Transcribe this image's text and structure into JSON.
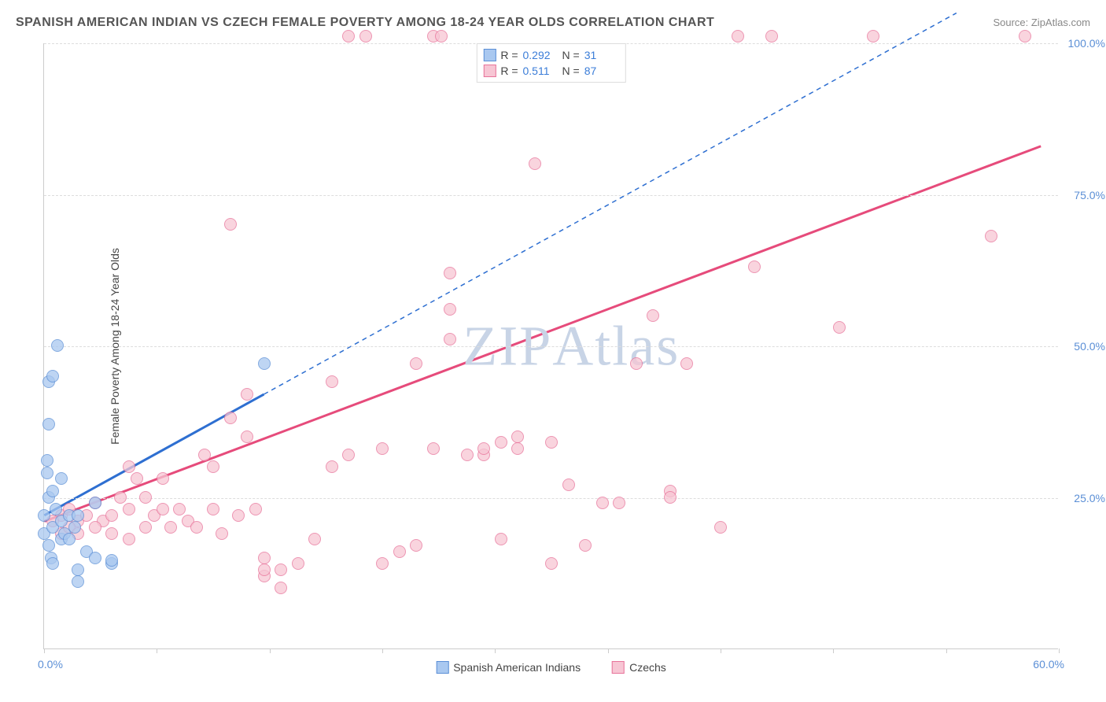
{
  "header": {
    "title": "SPANISH AMERICAN INDIAN VS CZECH FEMALE POVERTY AMONG 18-24 YEAR OLDS CORRELATION CHART",
    "source": "Source: ZipAtlas.com"
  },
  "watermark": "ZIPAtlas",
  "chart": {
    "type": "scatter",
    "y_axis_title": "Female Poverty Among 18-24 Year Olds",
    "xlim": [
      0,
      60
    ],
    "ylim": [
      0,
      100
    ],
    "x_origin_label": "0.0%",
    "x_max_label": "60.0%",
    "x_ticks": [
      0,
      6.67,
      13.33,
      20,
      26.67,
      33.33,
      40,
      46.67,
      53.33,
      60
    ],
    "y_gridlines": [
      {
        "y": 25,
        "label": "25.0%"
      },
      {
        "y": 50,
        "label": "50.0%"
      },
      {
        "y": 75,
        "label": "75.0%"
      },
      {
        "y": 100,
        "label": "100.0%"
      }
    ],
    "grid_color": "#dddddd",
    "axis_color": "#cccccc",
    "tick_label_color": "#5b8fd6",
    "marker_radius": 8,
    "marker_stroke_width": 1.5,
    "series": [
      {
        "name": "Spanish American Indians",
        "fill": "#a9c8f0",
        "stroke": "#5b8fd6",
        "R": "0.292",
        "N": "31",
        "trend": {
          "x1": 0,
          "y1": 22,
          "x2": 13,
          "y2": 42,
          "dash_x2": 54,
          "dash_y2": 105,
          "stroke": "#2e6fd1",
          "width": 3
        },
        "points": [
          [
            0,
            19
          ],
          [
            0,
            22
          ],
          [
            0.3,
            25
          ],
          [
            0.2,
            29
          ],
          [
            0.5,
            20
          ],
          [
            0.3,
            17
          ],
          [
            0.4,
            15
          ],
          [
            0.5,
            14
          ],
          [
            1,
            18
          ],
          [
            1,
            21
          ],
          [
            0.7,
            23
          ],
          [
            0.5,
            26
          ],
          [
            1,
            28
          ],
          [
            0.2,
            31
          ],
          [
            0.3,
            37
          ],
          [
            0.3,
            44
          ],
          [
            0.5,
            45
          ],
          [
            0.8,
            50
          ],
          [
            1.2,
            19
          ],
          [
            1.5,
            18
          ],
          [
            1.5,
            22
          ],
          [
            1.8,
            20
          ],
          [
            2,
            13
          ],
          [
            2,
            11
          ],
          [
            2.5,
            16
          ],
          [
            3,
            15
          ],
          [
            4,
            14
          ],
          [
            4,
            14.5
          ],
          [
            2,
            22
          ],
          [
            3,
            24
          ],
          [
            13,
            47
          ]
        ]
      },
      {
        "name": "Czechs",
        "fill": "#f7c6d4",
        "stroke": "#e8739a",
        "R": "0.511",
        "N": "87",
        "trend": {
          "x1": 0,
          "y1": 21,
          "x2": 59,
          "y2": 83,
          "stroke": "#e64b7b",
          "width": 3
        },
        "points": [
          [
            1,
            22
          ],
          [
            1.5,
            23
          ],
          [
            2,
            21
          ],
          [
            2.5,
            22
          ],
          [
            3,
            24
          ],
          [
            3.5,
            21
          ],
          [
            4,
            22
          ],
          [
            4.5,
            25
          ],
          [
            5,
            23
          ],
          [
            5,
            30
          ],
          [
            5.5,
            28
          ],
          [
            6,
            25
          ],
          [
            6.5,
            22
          ],
          [
            7,
            23
          ],
          [
            7,
            28
          ],
          [
            7.5,
            20
          ],
          [
            8,
            23
          ],
          [
            8.5,
            21
          ],
          [
            9,
            20
          ],
          [
            9.5,
            32
          ],
          [
            10,
            23
          ],
          [
            10,
            30
          ],
          [
            10.5,
            19
          ],
          [
            11,
            38
          ],
          [
            11,
            70
          ],
          [
            11.5,
            22
          ],
          [
            12,
            42
          ],
          [
            12,
            35
          ],
          [
            12.5,
            23
          ],
          [
            13,
            12
          ],
          [
            13,
            15
          ],
          [
            14,
            13
          ],
          [
            15,
            14
          ],
          [
            16,
            18
          ],
          [
            17,
            30
          ],
          [
            17,
            44
          ],
          [
            18,
            32
          ],
          [
            18,
            101
          ],
          [
            19,
            101
          ],
          [
            20,
            33
          ],
          [
            20,
            14
          ],
          [
            21,
            16
          ],
          [
            22,
            47
          ],
          [
            22,
            17
          ],
          [
            23,
            101
          ],
          [
            23.5,
            101
          ],
          [
            23,
            33
          ],
          [
            24,
            62
          ],
          [
            24,
            56
          ],
          [
            24,
            51
          ],
          [
            25,
            32
          ],
          [
            26,
            32
          ],
          [
            26,
            33
          ],
          [
            27,
            18
          ],
          [
            27,
            34
          ],
          [
            28,
            33
          ],
          [
            28,
            35
          ],
          [
            29,
            80
          ],
          [
            30,
            34
          ],
          [
            30,
            14
          ],
          [
            31,
            27
          ],
          [
            32,
            17
          ],
          [
            33,
            24
          ],
          [
            34,
            24
          ],
          [
            35,
            47
          ],
          [
            36,
            55
          ],
          [
            37,
            26
          ],
          [
            37,
            25
          ],
          [
            38,
            47
          ],
          [
            40,
            20
          ],
          [
            41,
            101
          ],
          [
            42,
            63
          ],
          [
            43,
            101
          ],
          [
            47,
            53
          ],
          [
            49,
            101
          ],
          [
            56,
            68
          ],
          [
            58,
            101
          ],
          [
            0.5,
            21
          ],
          [
            1,
            19
          ],
          [
            1.5,
            20
          ],
          [
            2,
            19
          ],
          [
            3,
            20
          ],
          [
            4,
            19
          ],
          [
            5,
            18
          ],
          [
            6,
            20
          ],
          [
            13,
            13
          ],
          [
            14,
            10
          ]
        ]
      }
    ],
    "legend_bottom": [
      {
        "label": "Spanish American Indians",
        "fill": "#a9c8f0",
        "stroke": "#5b8fd6"
      },
      {
        "label": "Czechs",
        "fill": "#f7c6d4",
        "stroke": "#e8739a"
      }
    ]
  }
}
